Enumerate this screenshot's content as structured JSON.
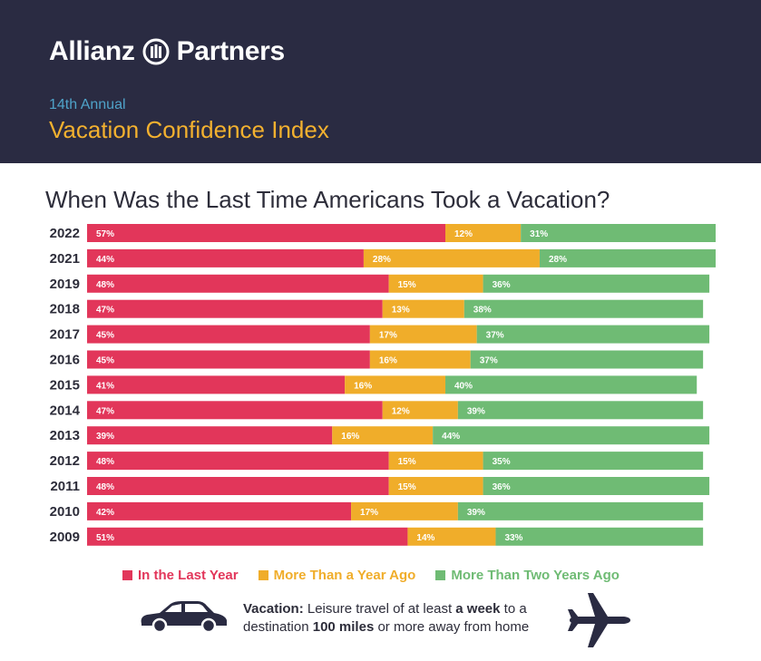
{
  "header": {
    "brand_left": "Allianz",
    "brand_right": "Partners",
    "edition": "14th Annual",
    "report_title": "Vacation Confidence Index"
  },
  "chart_title": "When Was the Last Time Americans Took a Vacation?",
  "legend": {
    "last_year": "In the Last Year",
    "more_than_year": "More Than a Year Ago",
    "more_than_two": "More Than Two Years Ago"
  },
  "colors": {
    "header_bg": "#2a2b42",
    "last_year": "#e2365a",
    "more_than_year": "#f0ad2a",
    "more_than_two": "#6fbb74"
  },
  "note": {
    "label": "Vacation:",
    "text1": " Leisure travel of at least ",
    "bold1": "a week",
    "text2": " to a destination ",
    "bold2": "100 miles",
    "text3": " or more away from home"
  },
  "icons": {
    "car": "car-icon",
    "plane": "airplane-icon",
    "logo": "allianz-eagle-logo-icon"
  },
  "chart_data": {
    "type": "bar",
    "orientation": "horizontal",
    "stacked": true,
    "categories": [
      "2022",
      "2021",
      "2019",
      "2018",
      "2017",
      "2016",
      "2015",
      "2014",
      "2013",
      "2012",
      "2011",
      "2010",
      "2009"
    ],
    "series": [
      {
        "name": "In the Last Year",
        "values": [
          57,
          44,
          48,
          47,
          45,
          45,
          41,
          47,
          39,
          48,
          48,
          42,
          51
        ]
      },
      {
        "name": "More Than a Year Ago",
        "values": [
          12,
          28,
          15,
          13,
          17,
          16,
          16,
          12,
          16,
          15,
          15,
          17,
          14
        ]
      },
      {
        "name": "More Than Two Years Ago",
        "values": [
          31,
          28,
          36,
          38,
          37,
          37,
          40,
          39,
          44,
          35,
          36,
          39,
          33
        ]
      }
    ],
    "value_suffix": "%",
    "legend_position": "bottom",
    "grid": false
  }
}
